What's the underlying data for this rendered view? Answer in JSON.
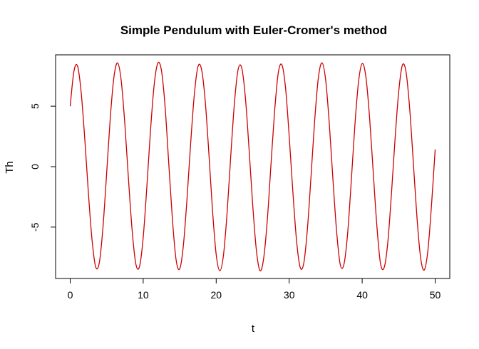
{
  "chart_data": {
    "type": "line",
    "title": "Simple Pendulum with Euler-Cromer's method",
    "xlabel": "t",
    "ylabel": "Th",
    "xlim": [
      -2,
      52
    ],
    "ylim": [
      -9.25,
      9.25
    ],
    "xticks": [
      0,
      10,
      20,
      30,
      40,
      50
    ],
    "yticks": [
      -5,
      0,
      5
    ],
    "x_tick_labels": [
      "0",
      "10",
      "20",
      "30",
      "40",
      "50"
    ],
    "y_tick_labels": [
      "-5",
      "0",
      "5"
    ],
    "grid": false,
    "legend": "none",
    "line_color": "#cc0000",
    "series": [
      {
        "x": [
          0.0,
          0.5,
          1.0,
          1.5,
          2.0,
          2.5,
          3.0,
          3.5,
          4.0,
          4.5,
          5.0,
          5.5,
          6.0,
          6.5,
          7.0,
          7.5,
          8.0,
          8.5,
          9.0,
          9.5,
          10.0,
          10.5,
          11.0,
          11.5,
          12.0,
          12.5,
          13.0,
          13.5,
          14.0,
          14.5,
          15.0,
          15.5,
          16.0,
          16.5,
          17.0,
          17.5,
          18.0,
          18.5,
          19.0,
          19.5,
          20.0,
          20.5,
          21.0,
          21.5,
          22.0,
          22.5,
          23.0,
          23.5,
          24.0,
          24.5,
          25.0,
          25.5,
          26.0,
          26.5,
          27.0,
          27.5,
          28.0,
          28.5,
          29.0,
          29.5,
          30.0,
          30.5,
          31.0,
          31.5,
          32.0,
          32.5,
          33.0,
          33.5,
          34.0,
          34.5,
          35.0,
          35.5,
          36.0,
          36.5,
          37.0,
          37.5,
          38.0,
          38.5,
          39.0,
          39.5,
          40.0,
          40.5,
          41.0,
          41.5,
          42.0,
          42.5,
          43.0,
          43.5,
          44.0,
          44.5,
          45.0,
          45.5,
          46.0,
          46.5,
          47.0,
          47.5,
          48.0,
          48.5,
          49.0,
          49.5,
          50.0
        ],
        "values": [
          5.0,
          7.85,
          8.33,
          6.17,
          2.28,
          -2.24,
          -6.11,
          -8.31,
          -7.9,
          -4.93,
          -0.48,
          4.12,
          7.45,
          8.58,
          7.06,
          3.41,
          -1.18,
          -5.37,
          -8.07,
          -8.25,
          -5.86,
          -1.68,
          2.98,
          6.75,
          8.56,
          7.96,
          4.97,
          0.3,
          -4.33,
          -7.67,
          -8.46,
          -6.54,
          -2.68,
          1.91,
          5.93,
          8.27,
          8.03,
          5.42,
          1.08,
          -3.65,
          -7.27,
          -8.61,
          -7.3,
          -3.76,
          0.93,
          5.27,
          8.03,
          8.16,
          5.71,
          1.49,
          -3.14,
          -6.88,
          -8.6,
          -7.6,
          -4.44,
          0.12,
          4.56,
          7.74,
          8.43,
          6.53,
          2.53,
          -2.04,
          -6.06,
          -8.32,
          -7.98,
          -5.12,
          -0.73,
          3.89,
          7.37,
          8.59,
          7.16,
          3.51,
          -1.11,
          -5.38,
          -8.11,
          -8.08,
          -5.57,
          -1.25,
          3.42,
          7.02,
          8.53,
          7.46,
          4.18,
          -0.33,
          -4.8,
          -7.97,
          -8.37,
          -6.33,
          -2.33,
          2.24,
          6.18,
          8.39,
          7.86,
          4.86,
          0.41,
          -4.16,
          -7.51,
          -8.55,
          -6.94,
          -3.15,
          1.43
        ]
      }
    ]
  }
}
